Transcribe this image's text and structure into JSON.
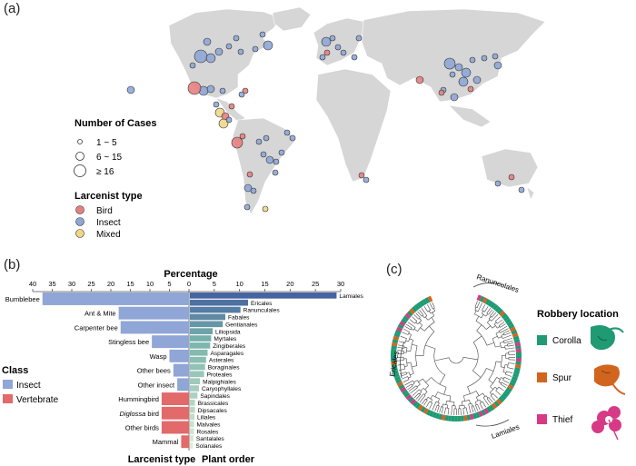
{
  "panels": {
    "a": "(a)",
    "b": "(b)",
    "c": "(c)"
  },
  "colors": {
    "bird": "#e58080",
    "insect": "#8fa6d6",
    "mixed": "#f1d68a",
    "land": "#d6d6d6",
    "insect_bar": "#8fa6d6",
    "vertebrate_bar": "#e26a6a",
    "corolla": "#1f9a73",
    "spur": "#d2651e",
    "thief": "#d63a86"
  },
  "map_legend": {
    "cases_title": "Number of Cases",
    "cases": [
      "1 ~ 5",
      "6 ~ 15",
      "≥ 16"
    ],
    "type_title": "Larcenist type",
    "types": [
      "Bird",
      "Insect",
      "Mixed"
    ]
  },
  "chart_data": [
    {
      "type": "bar",
      "title": "Percentage",
      "xlabel": "Larcenist type",
      "xlim": [
        40,
        0
      ],
      "ticks": [
        40,
        35,
        30,
        25,
        20,
        15,
        10,
        5,
        0
      ],
      "categories": [
        "Bumblebee",
        "Ant & Mite",
        "Carpenter bee",
        "Stingless bee",
        "Wasp",
        "Other bees",
        "Other insect",
        "Hummingbird",
        "Diglossa bird",
        "Other birds",
        "Mammal"
      ],
      "values": [
        37.5,
        18.0,
        17.5,
        9.5,
        5.0,
        4.0,
        3.0,
        7.0,
        7.0,
        7.0,
        2.0
      ],
      "classes": [
        "Insect",
        "Insect",
        "Insect",
        "Insect",
        "Insect",
        "Insect",
        "Insect",
        "Vertebrate",
        "Vertebrate",
        "Vertebrate",
        "Vertebrate"
      ],
      "legend": {
        "title": "Class",
        "entries": [
          "Insect",
          "Vertebrate"
        ]
      }
    },
    {
      "type": "bar",
      "xlabel": "Plant order",
      "xlim": [
        0,
        30
      ],
      "ticks": [
        0,
        5,
        10,
        15,
        20,
        25,
        30
      ],
      "categories": [
        "Lamiales",
        "Ericales",
        "Ranunculales",
        "Fabales",
        "Gentianales",
        "Liliopsida",
        "Myrtales",
        "Zingiberales",
        "Asparagales",
        "Asterales",
        "Boraginales",
        "Proteales",
        "Malpighiales",
        "Caryophyllales",
        "Sapindales",
        "Brassicales",
        "Dipsacales",
        "Liliales",
        "Malvales",
        "Rosales",
        "Santalales",
        "Solanales"
      ],
      "values": [
        29.0,
        11.5,
        10.0,
        7.0,
        6.5,
        4.5,
        4.2,
        4.0,
        3.5,
        3.2,
        3.0,
        2.8,
        2.0,
        1.8,
        1.5,
        1.0,
        1.0,
        0.9,
        0.8,
        0.8,
        0.7,
        0.6
      ]
    }
  ],
  "tree": {
    "clade_labels": [
      "Ranunculales",
      "Ericales",
      "Lamiales"
    ],
    "legend_title": "Robbery location",
    "locations": [
      "Corolla",
      "Spur",
      "Thief"
    ]
  }
}
